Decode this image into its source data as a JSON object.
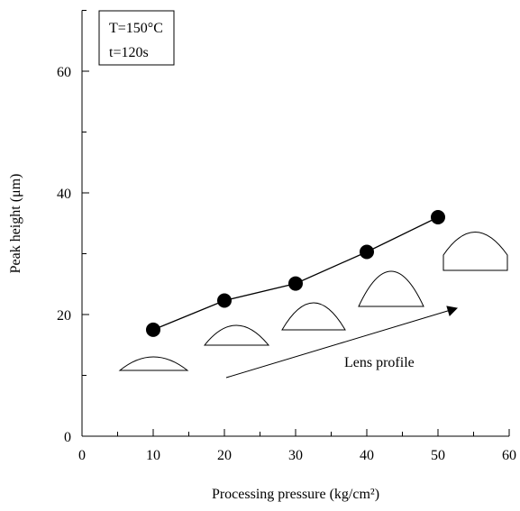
{
  "chart_data": {
    "type": "line",
    "x_label": "Processing pressure (kg/cm²)",
    "y_label": "Peak height (μm)",
    "annotations": [
      "T=150°C",
      "t=120s",
      "Lens profile"
    ],
    "x": [
      10,
      20,
      30,
      40,
      50
    ],
    "values": [
      17.5,
      22.3,
      25.1,
      30.3,
      36
    ],
    "color": "#000000",
    "xlim": [
      0,
      60
    ],
    "xticks": [
      0,
      10,
      20,
      30,
      40,
      50,
      60
    ],
    "xminorticks": [
      5,
      15,
      25,
      35,
      45,
      55
    ],
    "ylim": [
      0,
      70
    ],
    "yticks": [
      0,
      20,
      40,
      60
    ],
    "yminorticks": [
      10,
      30,
      50,
      70
    ]
  }
}
